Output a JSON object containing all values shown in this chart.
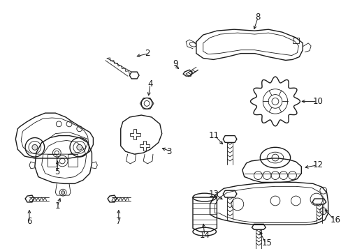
{
  "bg_color": "#ffffff",
  "line_color": "#1a1a1a",
  "lw": 1.0,
  "tlw": 0.6,
  "fs": 8.5
}
